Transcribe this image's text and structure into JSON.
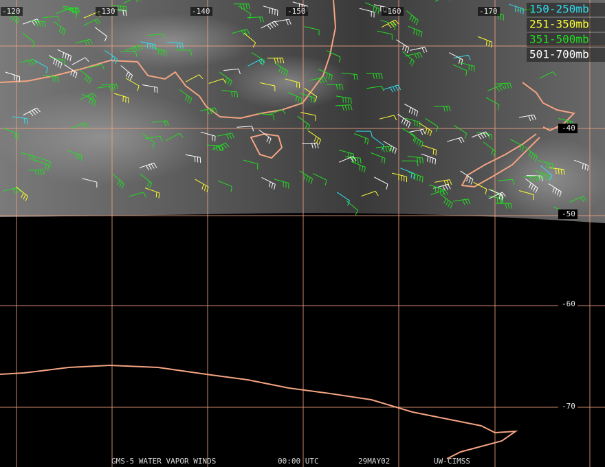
{
  "map": {
    "longitude_labels": [
      "-120",
      "-130",
      "-140",
      "-150",
      "-160",
      "-170"
    ],
    "latitude_labels": [
      "-40",
      "-50",
      "-60",
      "-70"
    ],
    "legend": [
      {
        "label": "150-250mb",
        "color": "#33ddee"
      },
      {
        "label": "251-350mb",
        "color": "#ffff33"
      },
      {
        "label": "351-500mb",
        "color": "#22dd22"
      },
      {
        "label": "501-700mb",
        "color": "#ffffff"
      }
    ],
    "footer": [
      "GMS-5 WATER VAPOR WINDS",
      "00:00 UTC",
      "29MAY02",
      "UW-CIMSS"
    ]
  }
}
